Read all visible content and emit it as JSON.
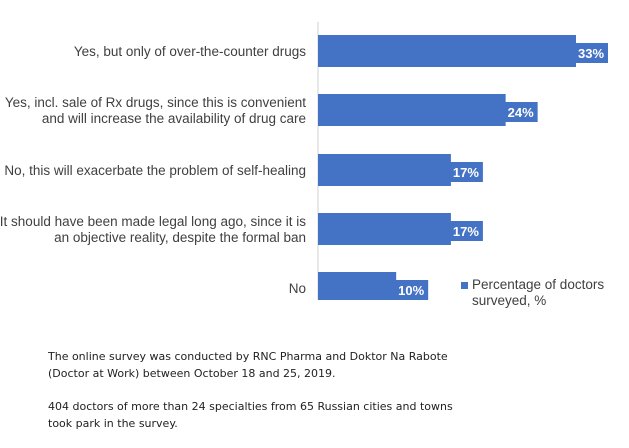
{
  "chart_data": {
    "type": "bar",
    "orientation": "horizontal",
    "categories": [
      [
        "Yes, but only of over-the-counter drugs"
      ],
      [
        "Yes, incl. sale of Rx drugs, since this is convenient",
        "and will increase the availability of drug care"
      ],
      [
        "No, this will exacerbate the problem of self-healing"
      ],
      [
        "It should have been made legal long ago, since it is",
        "an objective reality, despite the formal ban"
      ],
      [
        "No"
      ]
    ],
    "series": [
      {
        "name": "Percentage of doctors surveyed, %",
        "values": [
          33,
          24,
          17,
          17,
          10
        ],
        "labels": [
          "33%",
          "24%",
          "17%",
          "17%",
          "10%"
        ]
      }
    ],
    "xlim": [
      0,
      33
    ],
    "grid": false,
    "legend_position": "bottom-right",
    "bar_color": "#4472C4"
  },
  "legend": {
    "label_line1": "Percentage of doctors",
    "label_line2": "surveyed, %"
  },
  "notes": {
    "p1": "The online survey was conducted by RNC Pharma and Doktor Na Rabote (Doctor at Work) between October 18 and 25, 2019.",
    "p2": "404 doctors of more than 24 specialties from 65 Russian cities and towns took park in the survey."
  }
}
